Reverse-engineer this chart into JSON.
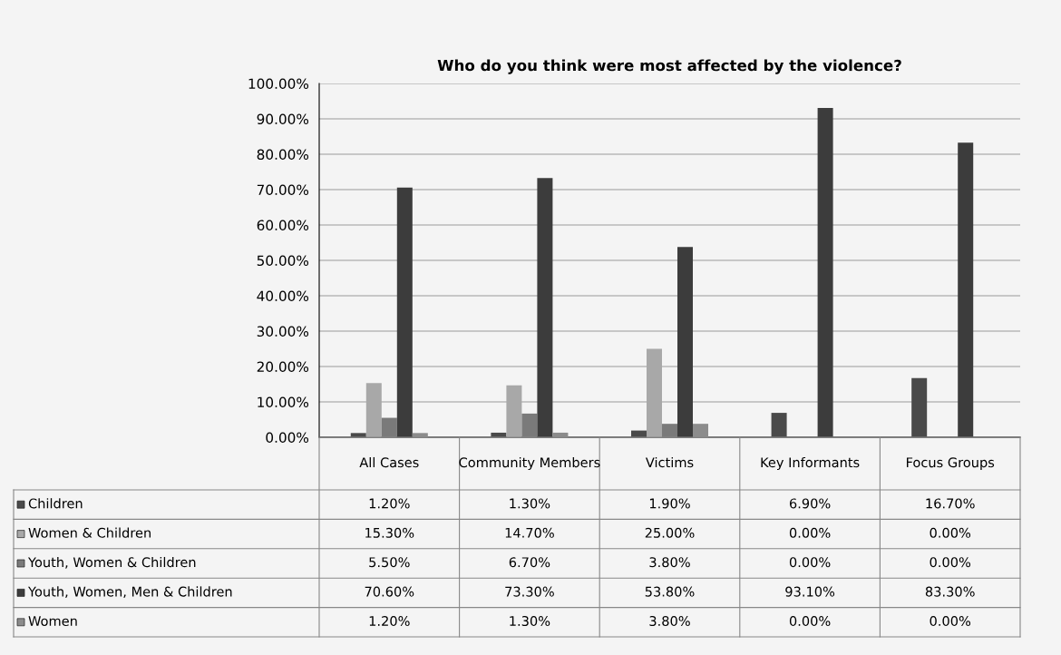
{
  "chart_data": {
    "type": "bar",
    "title": "Who do you think were most affected by the violence?",
    "categories": [
      "All Cases",
      "Community Members",
      "Victims",
      "Key Informants",
      "Focus Groups"
    ],
    "series": [
      {
        "name": "Children",
        "color": "#4a4a4a",
        "values": [
          1.2,
          1.3,
          1.9,
          6.9,
          16.7
        ],
        "value_labels": [
          "1.20%",
          "1.30%",
          "1.90%",
          "6.90%",
          "16.70%"
        ]
      },
      {
        "name": "Women & Children",
        "color": "#a8a8a8",
        "values": [
          15.3,
          14.7,
          25.0,
          0.0,
          0.0
        ],
        "value_labels": [
          "15.30%",
          "14.70%",
          "25.00%",
          "0.00%",
          "0.00%"
        ]
      },
      {
        "name": "Youth, Women & Children",
        "color": "#7a7a7a",
        "values": [
          5.5,
          6.7,
          3.8,
          0.0,
          0.0
        ],
        "value_labels": [
          "5.50%",
          "6.70%",
          "3.80%",
          "0.00%",
          "0.00%"
        ]
      },
      {
        "name": "Youth, Women, Men & Children",
        "color": "#3c3c3c",
        "values": [
          70.6,
          73.3,
          53.8,
          93.1,
          83.3
        ],
        "value_labels": [
          "70.60%",
          "73.30%",
          "53.80%",
          "93.10%",
          "83.30%"
        ]
      },
      {
        "name": "Women",
        "color": "#8c8c8c",
        "values": [
          1.2,
          1.3,
          3.8,
          0.0,
          0.0
        ],
        "value_labels": [
          "1.20%",
          "1.30%",
          "3.80%",
          "0.00%",
          "0.00%"
        ]
      }
    ],
    "ylim": [
      0,
      100
    ],
    "yticks": [
      {
        "value": 0,
        "label": "0.00%"
      },
      {
        "value": 10,
        "label": "10.00%"
      },
      {
        "value": 20,
        "label": "20.00%"
      },
      {
        "value": 30,
        "label": "30.00%"
      },
      {
        "value": 40,
        "label": "40.00%"
      },
      {
        "value": 50,
        "label": "50.00%"
      },
      {
        "value": 60,
        "label": "60.00%"
      },
      {
        "value": 70,
        "label": "70.00%"
      },
      {
        "value": 80,
        "label": "80.00%"
      },
      {
        "value": 90,
        "label": "90.00%"
      },
      {
        "value": 100,
        "label": "100.00%"
      }
    ],
    "grid": "y",
    "legend": "bottom left"
  }
}
